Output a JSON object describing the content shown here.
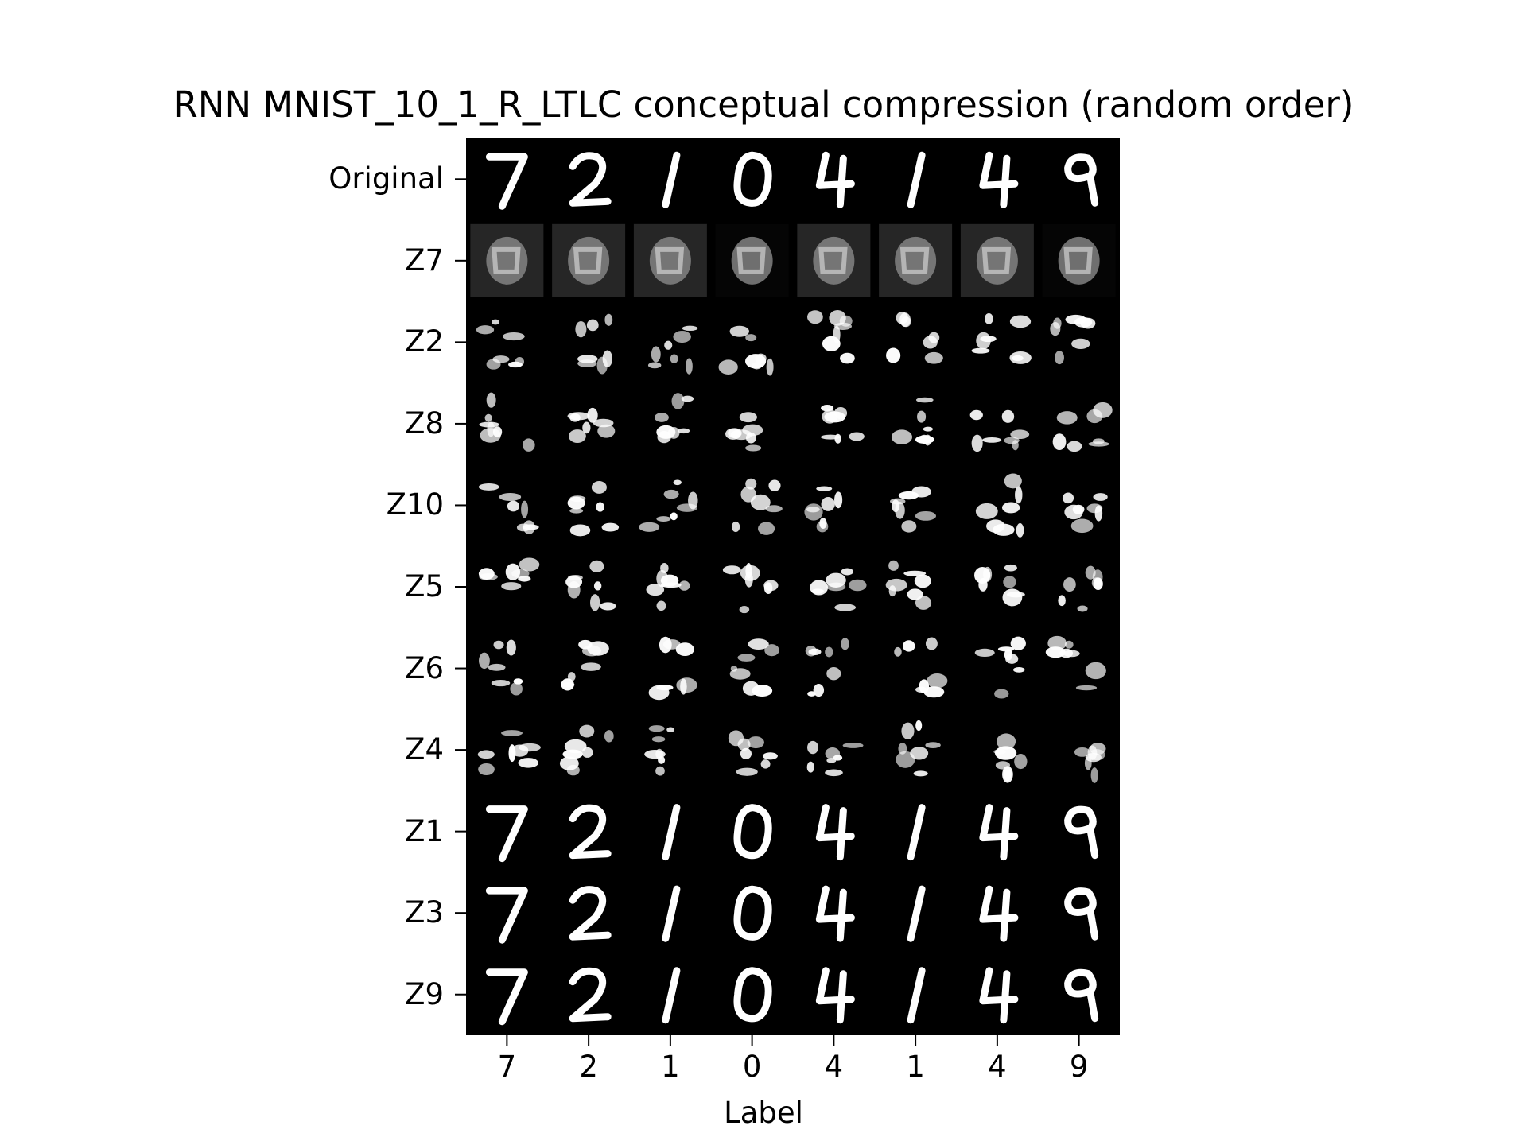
{
  "figure": {
    "title": "RNN MNIST_10_1_R_LTLC conceptual compression (random order)",
    "xaxis_title": "Label",
    "row_labels": [
      "Original",
      "Z7",
      "Z2",
      "Z8",
      "Z10",
      "Z5",
      "Z6",
      "Z4",
      "Z1",
      "Z3",
      "Z9"
    ],
    "column_labels": [
      "7",
      "2",
      "1",
      "0",
      "4",
      "1",
      "4",
      "9"
    ],
    "background_color": "#000000",
    "digit_color": "#ffffff",
    "tile_descriptions": {
      "Original": "clean handwritten digits",
      "Z7": "blurry noisy blob reconstructions",
      "Z2/Z8/Z10/Z5/Z6/Z4": "fragmented distorted stroke reconstructions",
      "Z1/Z3/Z9": "clean digit reconstructions"
    }
  }
}
